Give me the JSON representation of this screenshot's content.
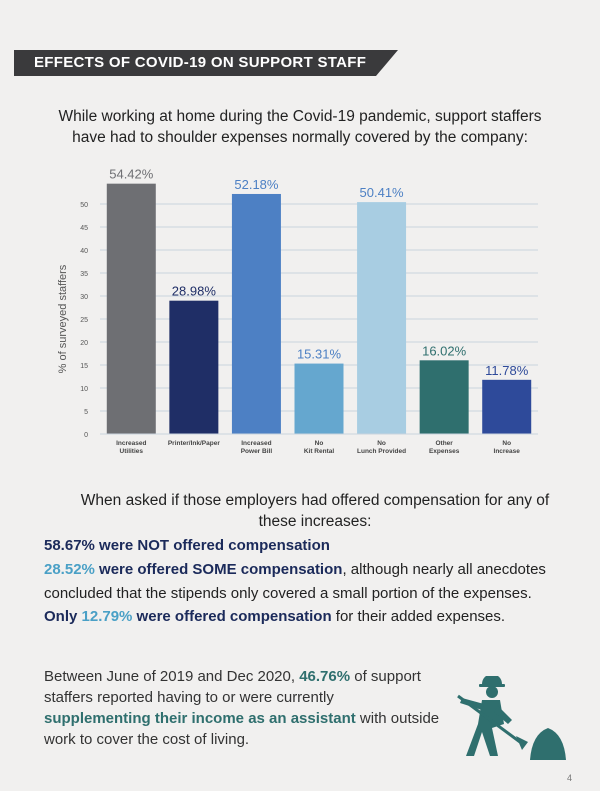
{
  "banner": {
    "title": "EFFECTS OF COVID-19 ON SUPPORT STAFF"
  },
  "intro": "While working at home during the Covid-19 pandemic, support staffers have had to shoulder expenses normally covered by the company:",
  "chart_data": {
    "type": "bar",
    "categories": [
      "Increased Utilities",
      "Printer/Ink/Paper",
      "Increased Power Bill",
      "No Kit Rental",
      "No Lunch Provided",
      "Other Expenses",
      "No Increase"
    ],
    "values": [
      54.42,
      28.98,
      52.18,
      15.31,
      50.41,
      16.02,
      11.78
    ],
    "value_labels": [
      "54.42%",
      "28.98%",
      "52.18%",
      "15.31%",
      "50.41%",
      "16.02%",
      "11.78%"
    ],
    "colors": [
      "#6e6f73",
      "#1f2e66",
      "#4d80c4",
      "#65a7cf",
      "#a8cde2",
      "#2f6f6e",
      "#2e4a9a"
    ],
    "label_colors": [
      "#6e6f73",
      "#1f2e66",
      "#4d80c4",
      "#4d80c4",
      "#4d80c4",
      "#2f6f6e",
      "#2e4a9a"
    ],
    "ylabel": "% of surveyed staffers",
    "yticks": [
      0,
      5,
      10,
      15,
      20,
      25,
      30,
      35,
      40,
      45,
      50
    ],
    "ylim": [
      0,
      50
    ],
    "grid": true
  },
  "question": "When asked if those employers had offered compensation for any of these increases:",
  "stats": {
    "line1_value": "58.67%",
    "line1_bold": " were NOT offered compensation",
    "line2_value": "28.52%",
    "line2_bold": " were offered SOME compensation",
    "line2_rest": ", although nearly all anecdotes",
    "line3": "concluded that the stipends only covered a small portion of the expenses.",
    "line4_pre": "Only ",
    "line4_value": "12.79%",
    "line4_bold": " were offered compensation",
    "line4_rest": " for their added expenses."
  },
  "note": {
    "part1": "Between June of 2019 and Dec 2020, ",
    "value": "46.76%",
    "part2": " of support staffers reported having to or were currently ",
    "highlight": "supplementing their income as an assistant",
    "part3": " with outside work to cover the cost of living."
  },
  "page_number": "4",
  "icon": "construction-worker-icon"
}
